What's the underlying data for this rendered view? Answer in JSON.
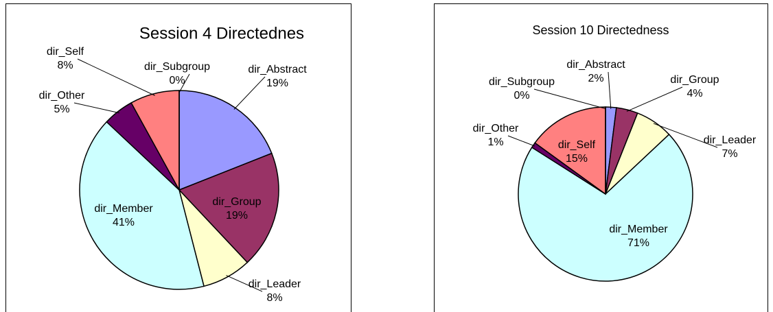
{
  "chart_data": [
    {
      "type": "pie",
      "title": "Session 4 Directednes",
      "categories": [
        "dir_Abstract",
        "dir_Group",
        "dir_Leader",
        "dir_Member",
        "dir_Other",
        "dir_Self",
        "dir_Subgroup"
      ],
      "values": [
        19,
        19,
        8,
        41,
        5,
        8,
        0
      ],
      "value_labels": [
        "19%",
        "19%",
        "8%",
        "41%",
        "5%",
        "8%",
        "0%"
      ],
      "colors": [
        "#9999ff",
        "#993366",
        "#ffffcc",
        "#ccffff",
        "#660066",
        "#ff8080",
        "#ffd0a0"
      ]
    },
    {
      "type": "pie",
      "title": "Session 10 Directedness",
      "categories": [
        "dir_Abstract",
        "dir_Group",
        "dir_Leader",
        "dir_Member",
        "dir_Other",
        "dir_Self",
        "dir_Subgroup"
      ],
      "values": [
        2,
        4,
        7,
        71,
        1,
        15,
        0
      ],
      "value_labels": [
        "2%",
        "4%",
        "7%",
        "71%",
        "1%",
        "15%",
        "0%"
      ],
      "colors": [
        "#9999ff",
        "#993366",
        "#ffffcc",
        "#ccffff",
        "#660066",
        "#ff8080",
        "#ffd0a0"
      ]
    }
  ]
}
